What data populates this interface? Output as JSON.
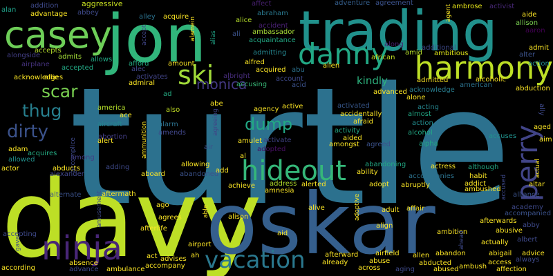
{
  "words": [
    {
      "text": "turtle",
      "color": "#2c718e"
    },
    {
      "text": "davy",
      "color": "#bddf26"
    },
    {
      "text": "oskar",
      "color": "#355f8d"
    },
    {
      "text": "jon",
      "color": "#31b57b"
    },
    {
      "text": "trading",
      "color": "#21918c"
    },
    {
      "text": "casey",
      "color": "#6ece58"
    },
    {
      "text": "harmony",
      "color": "#bddf26"
    },
    {
      "text": "danny",
      "color": "#22a884"
    },
    {
      "text": "hideout",
      "color": "#35b779"
    },
    {
      "text": "ninja",
      "color": "#482677"
    },
    {
      "text": "vacation",
      "color": "#2a788e"
    },
    {
      "text": "perry",
      "color": "#414487"
    },
    {
      "text": "ski",
      "color": "#a0da39"
    },
    {
      "text": "scar",
      "color": "#7ad151"
    },
    {
      "text": "thug",
      "color": "#277f8e"
    },
    {
      "text": "dirty",
      "color": "#3b528b"
    },
    {
      "text": "dump",
      "color": "#22a884"
    },
    {
      "text": "monica",
      "color": "#443983"
    },
    {
      "text": "kindly",
      "color": "#2db27d"
    },
    {
      "text": "aggressive",
      "color": "#c8e020"
    },
    {
      "text": "addition",
      "color": "#3e4989"
    },
    {
      "text": "abbey",
      "color": "#3e4989"
    },
    {
      "text": "affect",
      "color": "#482071"
    },
    {
      "text": "adventure",
      "color": "#355f8d"
    },
    {
      "text": "agreement",
      "color": "#3b528b"
    },
    {
      "text": "agent",
      "color": "#fde725"
    },
    {
      "text": "ambrose",
      "color": "#e5e419"
    },
    {
      "text": "activist",
      "color": "#482878"
    },
    {
      "text": "alan",
      "color": "#1fa088"
    },
    {
      "text": "advantage",
      "color": "#fde725"
    },
    {
      "text": "alley",
      "color": "#2c728e"
    },
    {
      "text": "acquire",
      "color": "#fde725"
    },
    {
      "text": "abraham",
      "color": "#2a788e"
    },
    {
      "text": "alamein",
      "color": "#fde725"
    },
    {
      "text": "aide",
      "color": "#fde725"
    },
    {
      "text": "allison",
      "color": "#7ad151"
    },
    {
      "text": "aaron",
      "color": "#440154"
    },
    {
      "text": "alice",
      "color": "#b5de2b"
    },
    {
      "text": "accident",
      "color": "#482071"
    },
    {
      "text": "ali",
      "color": "#3b528b"
    },
    {
      "text": "ambassador",
      "color": "#a5db36"
    },
    {
      "text": "acquaintance",
      "color": "#22a884"
    },
    {
      "text": "accept",
      "color": "#404688"
    },
    {
      "text": "alias",
      "color": "#20a386"
    },
    {
      "text": "alongside",
      "color": "#433e85"
    },
    {
      "text": "accepts",
      "color": "#b5de2b"
    },
    {
      "text": "admits",
      "color": "#a2da37"
    },
    {
      "text": "allows",
      "color": "#22a884"
    },
    {
      "text": "airplane",
      "color": "#46337f"
    },
    {
      "text": "accepted",
      "color": "#22a884"
    },
    {
      "text": "acknowledges",
      "color": "#fde725"
    },
    {
      "text": "allie",
      "color": "#fde725"
    },
    {
      "text": "afford",
      "color": "#25ab82"
    },
    {
      "text": "amount",
      "color": "#fde725"
    },
    {
      "text": "alec",
      "color": "#404688"
    },
    {
      "text": "admiral",
      "color": "#fde725"
    },
    {
      "text": "activates",
      "color": "#414487"
    },
    {
      "text": "albright",
      "color": "#472d7b"
    },
    {
      "text": "accusing",
      "color": "#38b977"
    },
    {
      "text": "admitting",
      "color": "#25858e"
    },
    {
      "text": "alfred",
      "color": "#fde725"
    },
    {
      "text": "acquired",
      "color": "#fde725"
    },
    {
      "text": "abu",
      "color": "#2c728e"
    },
    {
      "text": "account",
      "color": "#3e4989"
    },
    {
      "text": "acid",
      "color": "#3b528b"
    },
    {
      "text": "along",
      "color": "#481d6f"
    },
    {
      "text": "african",
      "color": "#c2df23"
    },
    {
      "text": "amid",
      "color": "#b5de2b"
    },
    {
      "text": "ambitious",
      "color": "#dde318"
    },
    {
      "text": "additional",
      "color": "#3e4989"
    },
    {
      "text": "admit",
      "color": "#fde725"
    },
    {
      "text": "alter",
      "color": "#3b528b"
    },
    {
      "text": "action",
      "color": "#228c8d"
    },
    {
      "text": "admitted",
      "color": "#fde725"
    },
    {
      "text": "alcoholic",
      "color": "#fde725"
    },
    {
      "text": "american",
      "color": "#2c728e"
    },
    {
      "text": "acknowledge",
      "color": "#287d8e"
    },
    {
      "text": "abduction",
      "color": "#fde725"
    },
    {
      "text": "alien",
      "color": "#fde725"
    },
    {
      "text": "advanced",
      "color": "#fde725"
    },
    {
      "text": "alone",
      "color": "#fde725"
    },
    {
      "text": "acting",
      "color": "#25858e"
    },
    {
      "text": "almost",
      "color": "#22a884"
    },
    {
      "text": "action",
      "color": "#228c8d"
    },
    {
      "text": "alcohol",
      "color": "#22a884"
    },
    {
      "text": "accuses",
      "color": "#21918c"
    },
    {
      "text": "aged",
      "color": "#fde725"
    },
    {
      "text": "ally",
      "color": "#3e4989"
    },
    {
      "text": "aim",
      "color": "#fde725"
    },
    {
      "text": "ad",
      "color": "#25ab82"
    },
    {
      "text": "also",
      "color": "#c2df23"
    },
    {
      "text": "america",
      "color": "#b5de2b"
    },
    {
      "text": "ace",
      "color": "#fde725"
    },
    {
      "text": "abe",
      "color": "#fde725"
    },
    {
      "text": "alarm",
      "color": "#2c728e"
    },
    {
      "text": "amends",
      "color": "#404688"
    },
    {
      "text": "aircraft",
      "color": "#25858e"
    },
    {
      "text": "alert",
      "color": "#fde725"
    },
    {
      "text": "abortion",
      "color": "#433e85"
    },
    {
      "text": "ammunition",
      "color": "#fde725"
    },
    {
      "text": "agreeing",
      "color": "#414487"
    },
    {
      "text": "active",
      "color": "#fde725"
    },
    {
      "text": "agency",
      "color": "#fde725"
    },
    {
      "text": "activated",
      "color": "#38588c"
    },
    {
      "text": "accidentally",
      "color": "#fde725"
    },
    {
      "text": "afraid",
      "color": "#fde725"
    },
    {
      "text": "activity",
      "color": "#22a884"
    },
    {
      "text": "aided",
      "color": "#fde725"
    },
    {
      "text": "amongst",
      "color": "#fde725"
    },
    {
      "text": "agreed",
      "color": "#3b528b"
    },
    {
      "text": "alpha",
      "color": "#22a884"
    },
    {
      "text": "amulet",
      "color": "#fde725"
    },
    {
      "text": "activate",
      "color": "#414487"
    },
    {
      "text": "adopted",
      "color": "#471063"
    },
    {
      "text": "air",
      "color": "#3b528b"
    },
    {
      "text": "al",
      "color": "#fde725"
    },
    {
      "text": "adam",
      "color": "#fde725"
    },
    {
      "text": "acquires",
      "color": "#25ab82"
    },
    {
      "text": "accomplice",
      "color": "#3e4989"
    },
    {
      "text": "allowed",
      "color": "#21918c"
    },
    {
      "text": "among",
      "color": "#433e85"
    },
    {
      "text": "actor",
      "color": "#fde725"
    },
    {
      "text": "abducts",
      "color": "#fde725"
    },
    {
      "text": "adding",
      "color": "#3e4989"
    },
    {
      "text": "allowing",
      "color": "#fde725"
    },
    {
      "text": "add",
      "color": "#fde725"
    },
    {
      "text": "alexander",
      "color": "#404688"
    },
    {
      "text": "aboard",
      "color": "#fde725"
    },
    {
      "text": "abandoned",
      "color": "#3b528b"
    },
    {
      "text": "abandoning",
      "color": "#22a884"
    },
    {
      "text": "ability",
      "color": "#fde725"
    },
    {
      "text": "actress",
      "color": "#fde725"
    },
    {
      "text": "although",
      "color": "#22a884"
    },
    {
      "text": "accompanies",
      "color": "#2c728e"
    },
    {
      "text": "habit",
      "color": "#fde725"
    },
    {
      "text": "addict",
      "color": "#fde725"
    },
    {
      "text": "accused",
      "color": "#3e4989"
    },
    {
      "text": "actual",
      "color": "#fde725"
    },
    {
      "text": "altar",
      "color": "#fde725"
    },
    {
      "text": "alternate",
      "color": "#3b528b"
    },
    {
      "text": "aftermath",
      "color": "#fde725"
    },
    {
      "text": "achieve",
      "color": "#fde725"
    },
    {
      "text": "address",
      "color": "#b5de2b"
    },
    {
      "text": "alerted",
      "color": "#fde725"
    },
    {
      "text": "adopt",
      "color": "#fde725"
    },
    {
      "text": "abruptly",
      "color": "#fde725"
    },
    {
      "text": "ambushed",
      "color": "#fde725"
    },
    {
      "text": "alliance",
      "color": "#3b528b"
    },
    {
      "text": "amnesia",
      "color": "#fde725"
    },
    {
      "text": "adoptive",
      "color": "#fde725"
    },
    {
      "text": "amusement",
      "color": "#3e4989"
    },
    {
      "text": "ago",
      "color": "#fde725"
    },
    {
      "text": "able",
      "color": "#fde725"
    },
    {
      "text": "alive",
      "color": "#fde725"
    },
    {
      "text": "adult",
      "color": "#fde725"
    },
    {
      "text": "affair",
      "color": "#fde725"
    },
    {
      "text": "academy",
      "color": "#3e4989"
    },
    {
      "text": "accompanied",
      "color": "#3b528b"
    },
    {
      "text": "agrees",
      "color": "#fde725"
    },
    {
      "text": "afterlife",
      "color": "#fde725"
    },
    {
      "text": "alison",
      "color": "#fde725"
    },
    {
      "text": "align",
      "color": "#fde725"
    },
    {
      "text": "afterwards",
      "color": "#fde725"
    },
    {
      "text": "abby",
      "color": "#3e4989"
    },
    {
      "text": "accepting",
      "color": "#3e4989"
    },
    {
      "text": "airport",
      "color": "#fde725"
    },
    {
      "text": "aid",
      "color": "#fde725"
    },
    {
      "text": "ambition",
      "color": "#fde725"
    },
    {
      "text": "abusive",
      "color": "#fde725"
    },
    {
      "text": "albert",
      "color": "#3e4989"
    },
    {
      "text": "ahead",
      "color": "#3e4989"
    },
    {
      "text": "actually",
      "color": "#fde725"
    },
    {
      "text": "gave",
      "color": "#3e4989"
    },
    {
      "text": "act",
      "color": "#fde725"
    },
    {
      "text": "advises",
      "color": "#fde725"
    },
    {
      "text": "ah",
      "color": "#fde725"
    },
    {
      "text": "afterward",
      "color": "#fde725"
    },
    {
      "text": "airfield",
      "color": "#fde725"
    },
    {
      "text": "allen",
      "color": "#fde725"
    },
    {
      "text": "abandon",
      "color": "#fde725"
    },
    {
      "text": "abigail",
      "color": "#fde725"
    },
    {
      "text": "advice",
      "color": "#fde725"
    },
    {
      "text": "always",
      "color": "#3e4989"
    },
    {
      "text": "absence",
      "color": "#fde725"
    },
    {
      "text": "accompany",
      "color": "#fde725"
    },
    {
      "text": "already",
      "color": "#fde725"
    },
    {
      "text": "abuse",
      "color": "#fde725"
    },
    {
      "text": "abducted",
      "color": "#fde725"
    },
    {
      "text": "access",
      "color": "#fde725"
    },
    {
      "text": "according",
      "color": "#fde725"
    },
    {
      "text": "advance",
      "color": "#3e4989"
    },
    {
      "text": "ambulance",
      "color": "#fde725"
    },
    {
      "text": "across",
      "color": "#fde725"
    },
    {
      "text": "aging",
      "color": "#3e4989"
    },
    {
      "text": "abused",
      "color": "#fde725"
    },
    {
      "text": "ambush",
      "color": "#fde725"
    },
    {
      "text": "affection",
      "color": "#fde725"
    }
  ]
}
